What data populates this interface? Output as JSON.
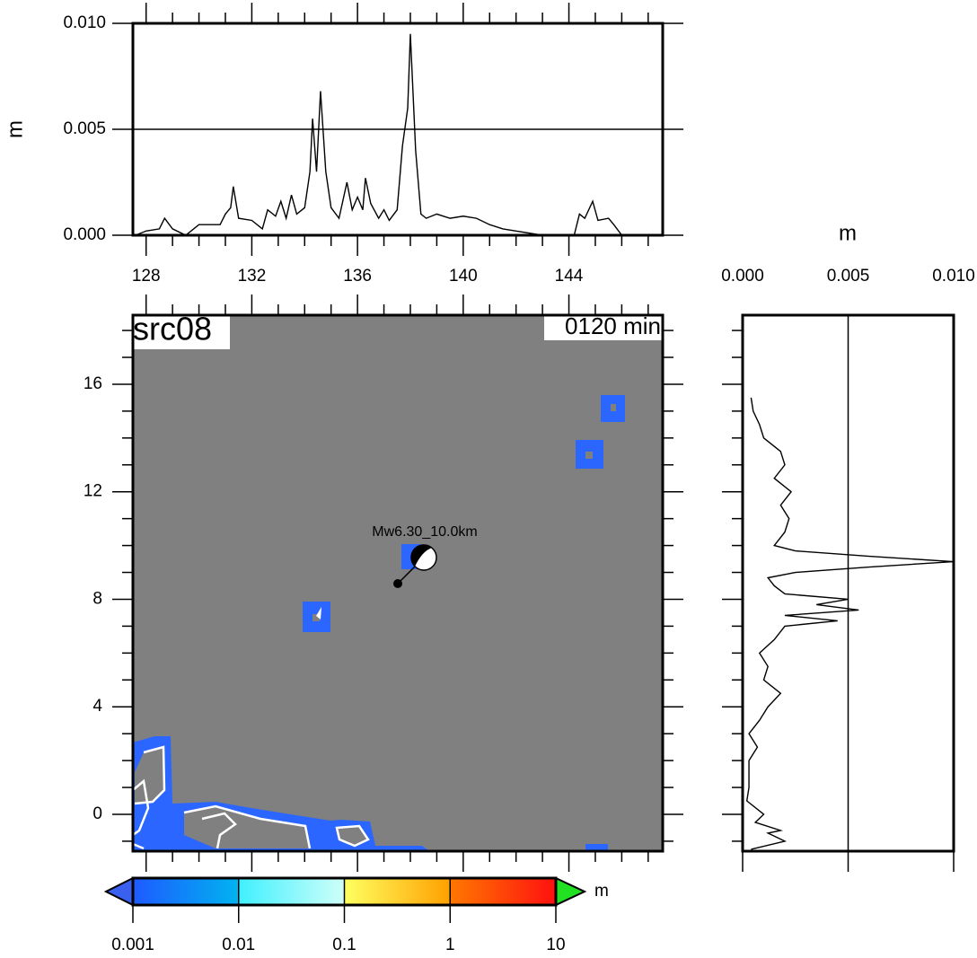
{
  "chart_data": [
    {
      "type": "line",
      "ylabel": "m",
      "xlim": [
        127.5,
        147.55
      ],
      "ylim": [
        0,
        0.01
      ],
      "xticks": [
        128,
        132,
        136,
        140,
        144
      ],
      "xminorticks": [
        129,
        130,
        131,
        133,
        134,
        135,
        137,
        138,
        139,
        141,
        142,
        143,
        145,
        146,
        147
      ],
      "yticks": [
        {
          "value": 0,
          "label": "0.000"
        },
        {
          "value": 0.005,
          "label": "0.005"
        },
        {
          "value": 0.01,
          "label": "0.010"
        }
      ],
      "grid": true,
      "color": "#000000",
      "x": [
        127.6,
        128,
        128.5,
        128.7,
        129,
        129.5,
        130,
        130.8,
        131,
        131.2,
        131.3,
        131.5,
        132,
        132.4,
        132.6,
        132.9,
        133.1,
        133.3,
        133.5,
        133.7,
        134,
        134.2,
        134.3,
        134.45,
        134.6,
        134.8,
        135,
        135.3,
        135.6,
        135.8,
        136,
        136.2,
        136.3,
        136.5,
        136.8,
        137,
        137.2,
        137.5,
        137.7,
        137.9,
        138,
        138.2,
        138.4,
        138.6,
        139,
        139.5,
        140,
        140.5,
        141,
        141.5,
        142,
        143,
        143.6,
        144.2,
        144.4,
        144.6,
        144.9,
        145.1,
        145.5,
        145.7,
        146
      ],
      "series": [
        {
          "values": [
            0,
            0.0002,
            0.0003,
            0.0008,
            0.0003,
            0,
            0.0005,
            0.0005,
            0.001,
            0.0013,
            0.0023,
            0.0008,
            0.0007,
            0.0003,
            0.0012,
            0.0009,
            0.0016,
            0.0008,
            0.0019,
            0.001,
            0.0013,
            0.003,
            0.0055,
            0.003,
            0.0068,
            0.003,
            0.0013,
            0.0008,
            0.0025,
            0.0012,
            0.0018,
            0.0012,
            0.0027,
            0.0015,
            0.0008,
            0.0012,
            0.0007,
            0.0012,
            0.0042,
            0.006,
            0.0095,
            0.004,
            0.001,
            0.0008,
            0.001,
            0.0008,
            0.0009,
            0.0008,
            0.0005,
            0.0003,
            0.0002,
            0,
            null,
            0,
            0.001,
            0.0008,
            0.0016,
            0.0007,
            0.0008,
            0.0005,
            0
          ]
        }
      ]
    },
    {
      "type": "map",
      "title": "src08",
      "subtitle": "0120 min",
      "annotation": "Mw6.30_10.0km",
      "xlim": [
        127.5,
        147.55
      ],
      "ylim": [
        -1.37,
        18.57
      ],
      "yticks": [
        0,
        4,
        8,
        12,
        16
      ],
      "yminorticks": [
        -1,
        1,
        2,
        3,
        5,
        6,
        7,
        9,
        10,
        11,
        13,
        14,
        15,
        17,
        18
      ],
      "background": "#808080"
    },
    {
      "type": "hline",
      "xlabel": "m",
      "xlim": [
        0,
        0.01
      ],
      "ylim": [
        -1.37,
        18.57
      ],
      "xticks": [
        {
          "value": 0,
          "label": "0.000"
        },
        {
          "value": 0.005,
          "label": "0.005"
        },
        {
          "value": 0.01,
          "label": "0.010"
        }
      ],
      "grid": true,
      "color": "#000000",
      "y": [
        -1.3,
        -1.0,
        -0.7,
        -0.6,
        -0.3,
        0,
        0.5,
        1,
        2,
        2.5,
        3,
        3.5,
        4,
        4.5,
        5,
        5.5,
        6,
        6.5,
        7,
        7.2,
        7.4,
        7.6,
        7.8,
        8,
        8.2,
        8.5,
        8.8,
        9,
        9.2,
        9.4,
        9.6,
        9.8,
        10,
        10.5,
        11,
        11.5,
        12,
        12.5,
        13,
        13.5,
        14,
        14.5,
        15,
        15.5
      ],
      "series": [
        {
          "values": [
            0.0004,
            0.002,
            0.0012,
            0.0018,
            0.0006,
            0.001,
            0.0002,
            0.0003,
            0.0003,
            0.0007,
            0.0003,
            0.0008,
            0.0012,
            0.0018,
            0.001,
            0.0012,
            0.0008,
            0.0015,
            0.002,
            0.0045,
            0.002,
            0.0055,
            0.0035,
            0.005,
            0.002,
            0.0015,
            0.0012,
            0.0025,
            0.006,
            0.01,
            0.006,
            0.0025,
            0.0015,
            0.002,
            0.0022,
            0.0018,
            0.0023,
            0.0015,
            0.002,
            0.0018,
            0.001,
            0.0008,
            0.0005,
            0.0004
          ]
        }
      ]
    },
    {
      "type": "colorbar",
      "label": "m",
      "log": true,
      "lim": [
        0.001,
        10
      ],
      "ticks": [
        0.001,
        0.01,
        0.1,
        1,
        10
      ],
      "segment_colors": [
        [
          "#1e5aff",
          "#00b4f0"
        ],
        [
          "#40f0ff",
          "#d0fff8"
        ],
        [
          "#ffff60",
          "#ffa000"
        ],
        [
          "#ff7800",
          "#ff1010"
        ]
      ],
      "under_color": "#3a60f0",
      "over_color": "#22e022"
    }
  ]
}
